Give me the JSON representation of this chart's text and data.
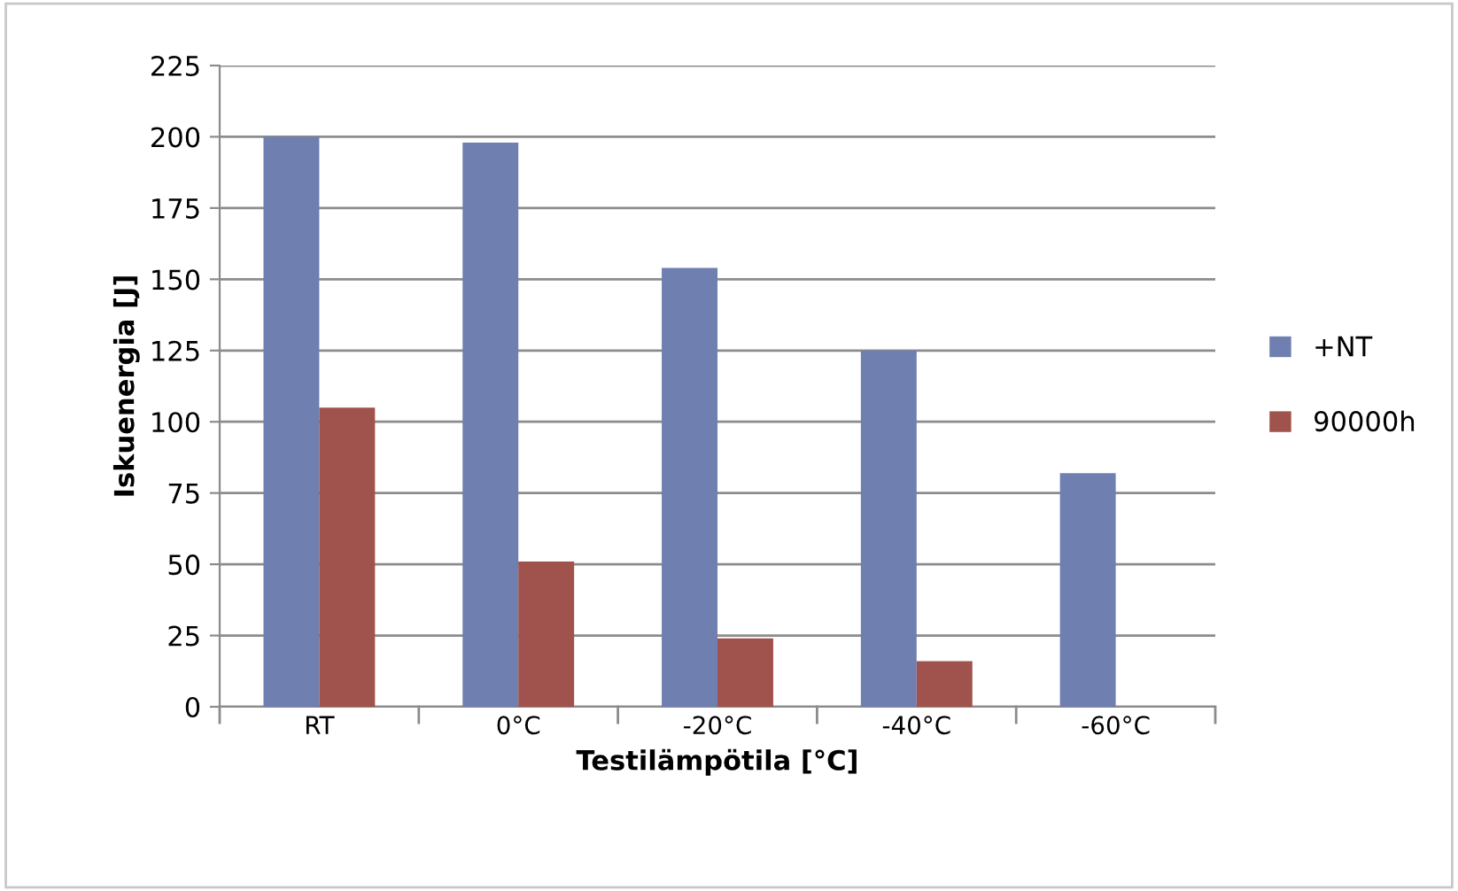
{
  "chart_data": {
    "type": "bar",
    "xlabel": "Testilämpötila [°C]",
    "ylabel": "Iskuenergia [J]",
    "categories": [
      "RT",
      "0°C",
      "-20°C",
      "-40°C",
      "-60°C"
    ],
    "series": [
      {
        "name": "+NT",
        "color": "#6e7fb0",
        "values": [
          200,
          198,
          154,
          125,
          82
        ]
      },
      {
        "name": "90000h",
        "color": "#a0524c",
        "values": [
          105,
          51,
          24,
          16,
          null
        ]
      }
    ],
    "ylim": [
      0,
      225
    ],
    "yticks": [
      0,
      25,
      50,
      75,
      100,
      125,
      150,
      175,
      200,
      225
    ],
    "grid": "y",
    "legend": "right"
  }
}
